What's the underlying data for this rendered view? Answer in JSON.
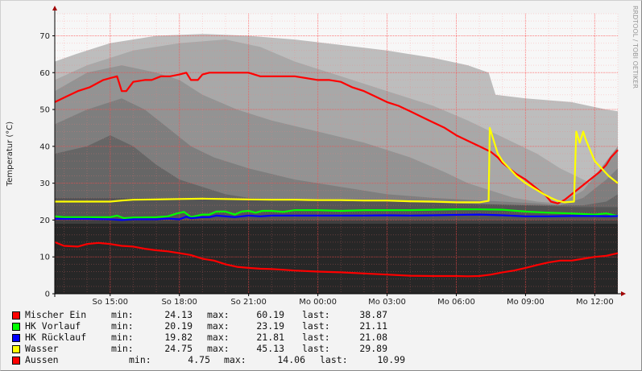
{
  "watermark": "RRDTOOL / TOBI OETIKER",
  "legend_labels": {
    "min": "min:",
    "max": "max:",
    "last": "last:"
  },
  "legend": [
    {
      "name": "Mischer Ein",
      "color": "#ff0000",
      "min": "24.13",
      "max": "60.19",
      "last": "38.87"
    },
    {
      "name": "HK Vorlauf",
      "color": "#00ff00",
      "min": "20.19",
      "max": "23.19",
      "last": "21.11"
    },
    {
      "name": "HK Rücklauf",
      "color": "#0000ff",
      "min": "19.82",
      "max": "21.81",
      "last": "21.08"
    },
    {
      "name": "Wasser",
      "color": "#ffff00",
      "min": "24.75",
      "max": "45.13",
      "last": "29.89"
    },
    {
      "name": "Aussen",
      "color": "#ff0000",
      "min": "4.75",
      "max": "14.06",
      "last": "10.99"
    }
  ],
  "chart_data": {
    "type": "line",
    "title": "",
    "xlabel": "",
    "ylabel": "Temperatur (°C)",
    "ylim": [
      0,
      76
    ],
    "xlim": [
      12.6,
      37.0
    ],
    "yticks": [
      0,
      10,
      20,
      30,
      40,
      50,
      60,
      70
    ],
    "xticks": [
      {
        "value": 15,
        "label": "So 15:00"
      },
      {
        "value": 18,
        "label": "So 18:00"
      },
      {
        "value": 21,
        "label": "So 21:00"
      },
      {
        "value": 24,
        "label": "Mo 00:00"
      },
      {
        "value": 27,
        "label": "Mo 03:00"
      },
      {
        "value": 30,
        "label": "Mo 06:00"
      },
      {
        "value": 33,
        "label": "Mo 09:00"
      },
      {
        "value": 36,
        "label": "Mo 12:00"
      }
    ],
    "grid": true,
    "series": [
      {
        "name": "Mischer Ein",
        "color": "#ff0000",
        "x": [
          12.6,
          13.1,
          13.6,
          14.1,
          14.4,
          14.7,
          15.0,
          15.3,
          15.5,
          15.7,
          16.0,
          16.5,
          16.8,
          17.2,
          17.6,
          18.0,
          18.3,
          18.5,
          18.8,
          19.0,
          19.3,
          20.0,
          21.0,
          21.5,
          22.0,
          23.0,
          24.0,
          24.5,
          25.0,
          25.5,
          26.0,
          26.5,
          27.0,
          27.5,
          28.0,
          28.5,
          29.0,
          29.5,
          30.0,
          30.5,
          31.0,
          31.5,
          31.8,
          32.0,
          32.3,
          32.6,
          33.0,
          33.3,
          33.6,
          33.9,
          34.1,
          34.4,
          34.7,
          35.0,
          35.3,
          35.6,
          35.9,
          36.2,
          36.5,
          36.7,
          37.0
        ],
        "y": [
          52,
          53.5,
          55,
          56,
          57,
          58,
          58.5,
          59,
          55,
          55,
          57.5,
          58,
          58,
          59,
          59,
          59.5,
          60,
          58,
          58,
          59.5,
          60,
          60,
          60,
          59,
          59,
          59,
          58,
          58,
          57.5,
          56,
          55,
          53.5,
          52,
          51,
          49.5,
          48,
          46.5,
          45,
          43,
          41.5,
          40,
          38.5,
          37,
          35.5,
          34,
          32.5,
          31,
          29.5,
          28,
          26.5,
          25,
          24.5,
          25.5,
          27,
          28.5,
          30,
          31.5,
          33,
          35,
          37,
          39
        ]
      },
      {
        "name": "HK Vorlauf",
        "color": "#00ff00",
        "x": [
          12.6,
          13.0,
          14.0,
          15.0,
          15.3,
          15.6,
          16.0,
          17.0,
          17.5,
          17.9,
          18.2,
          18.5,
          19.0,
          19.3,
          19.6,
          20.0,
          20.4,
          20.7,
          21.0,
          21.3,
          21.6,
          22.0,
          22.5,
          23.0,
          24.0,
          25.0,
          26.0,
          27.0,
          28.0,
          29.0,
          30.0,
          31.0,
          32.0,
          33.0,
          34.0,
          35.0,
          36.0,
          36.5,
          37.0
        ],
        "y": [
          21,
          20.8,
          20.8,
          20.8,
          21.2,
          20.5,
          20.7,
          20.8,
          21,
          21.8,
          22.2,
          20.8,
          21.5,
          21.5,
          22.3,
          22.3,
          21.5,
          22.3,
          22.5,
          22,
          22.5,
          22.5,
          22.2,
          22.7,
          22.7,
          22.5,
          22.7,
          22.7,
          22.7,
          22.8,
          22.9,
          22.9,
          22.8,
          22.3,
          22,
          21.8,
          21.5,
          21.8,
          21.1
        ]
      },
      {
        "name": "HK Rücklauf",
        "color": "#0000ff",
        "x": [
          12.6,
          14.0,
          15.0,
          15.5,
          16.0,
          17.0,
          17.5,
          18.0,
          18.3,
          18.5,
          19.0,
          19.3,
          19.6,
          20.0,
          20.4,
          20.7,
          21.0,
          21.5,
          22.0,
          23.0,
          24.0,
          25.0,
          26.0,
          27.0,
          28.0,
          29.0,
          30.0,
          31.0,
          32.0,
          33.0,
          34.0,
          35.0,
          36.0,
          36.5,
          37.0
        ],
        "y": [
          20.3,
          20.3,
          20.2,
          20.0,
          20.2,
          20.2,
          20.4,
          20.2,
          20.9,
          20.5,
          20.8,
          20.8,
          21.2,
          21.0,
          20.8,
          21.0,
          21.2,
          21.0,
          21.2,
          21.2,
          21.2,
          21.2,
          21.2,
          21.3,
          21.2,
          21.3,
          21.4,
          21.5,
          21.3,
          21.0,
          21.0,
          21.1,
          21.1,
          21.0,
          21.1
        ]
      },
      {
        "name": "Wasser",
        "color": "#ffff00",
        "x": [
          12.6,
          15.0,
          15.5,
          16.0,
          17.0,
          18.0,
          19.0,
          20.0,
          21.0,
          22.0,
          23.0,
          24.0,
          25.0,
          26.0,
          27.0,
          28.0,
          29.0,
          30.0,
          31.0,
          31.4,
          31.45,
          31.6,
          31.8,
          32.0,
          32.3,
          32.6,
          33.0,
          33.4,
          33.8,
          34.1,
          34.4,
          34.7,
          35.1,
          35.2,
          35.35,
          35.5,
          35.6,
          35.8,
          36.0,
          36.3,
          36.6,
          37.0
        ],
        "y": [
          25,
          25,
          25.3,
          25.5,
          25.6,
          25.7,
          25.8,
          25.7,
          25.6,
          25.5,
          25.5,
          25.4,
          25.4,
          25.3,
          25.3,
          25.1,
          25.0,
          24.8,
          24.8,
          25.2,
          45,
          42,
          38,
          36,
          34,
          32,
          30,
          28.5,
          27,
          26,
          25.2,
          24.8,
          25,
          44,
          41,
          44,
          42,
          39,
          36,
          34,
          32,
          30
        ]
      },
      {
        "name": "Aussen",
        "color": "#ff0000",
        "x": [
          12.6,
          13.0,
          13.6,
          14.0,
          14.5,
          15.0,
          15.5,
          16.0,
          16.5,
          17.0,
          17.5,
          18.0,
          18.5,
          19.0,
          19.5,
          20.0,
          20.5,
          21.0,
          21.5,
          22.0,
          22.5,
          23.0,
          24.0,
          25.0,
          26.0,
          27.0,
          28.0,
          29.0,
          30.0,
          30.5,
          31.0,
          31.5,
          32.0,
          32.5,
          33.0,
          33.5,
          34.0,
          34.5,
          35.0,
          35.5,
          36.0,
          36.5,
          37.0
        ],
        "y": [
          14,
          13,
          12.8,
          13.5,
          13.8,
          13.5,
          13.0,
          12.8,
          12.2,
          11.8,
          11.5,
          11.0,
          10.5,
          9.5,
          9.0,
          8.0,
          7.3,
          7.0,
          6.8,
          6.7,
          6.5,
          6.3,
          6.0,
          5.8,
          5.5,
          5.2,
          4.9,
          4.8,
          4.8,
          4.75,
          4.8,
          5.2,
          5.8,
          6.3,
          7.0,
          7.8,
          8.5,
          9.0,
          9.0,
          9.5,
          10.0,
          10.3,
          11.0
        ]
      }
    ]
  }
}
